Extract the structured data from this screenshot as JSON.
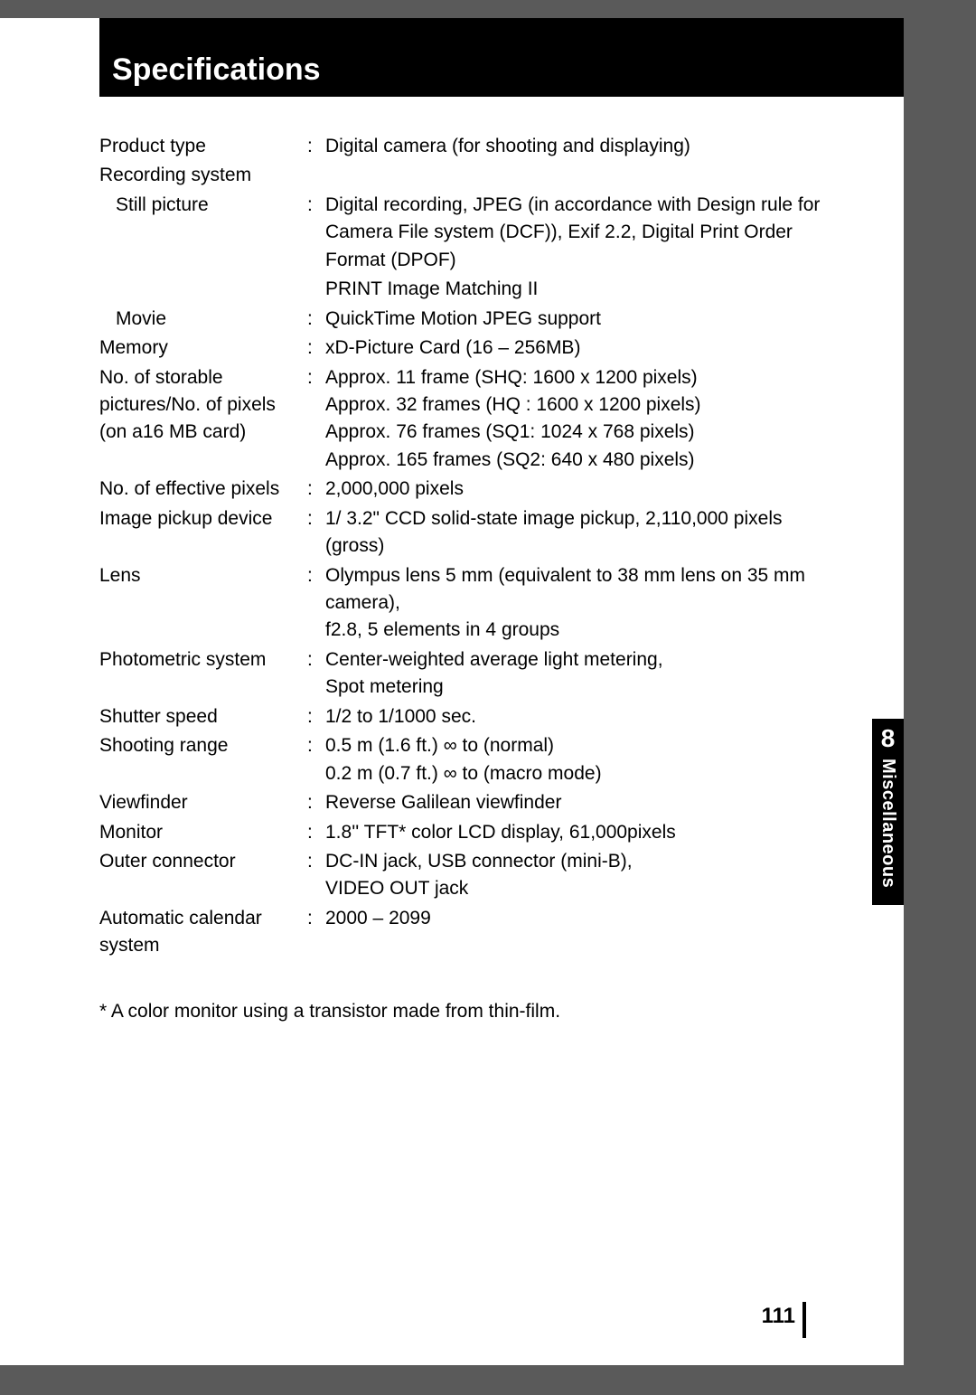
{
  "title": "Specifications",
  "specs": [
    {
      "label": "Product type",
      "colon": ":",
      "value": "Digital camera (for shooting and displaying)",
      "indent": false
    },
    {
      "label": "Recording system",
      "colon": "",
      "value": "",
      "indent": false
    },
    {
      "label": "Still picture",
      "colon": ":",
      "value": "Digital recording, JPEG (in accordance with Design rule for Camera File system (DCF)), Exif 2.2, Digital Print Order Format (DPOF)",
      "indent": true
    },
    {
      "label": "",
      "colon": "",
      "value": "PRINT Image Matching II",
      "indent": true
    },
    {
      "label": "Movie",
      "colon": ":",
      "value": "QuickTime Motion JPEG support",
      "indent": true
    },
    {
      "label": "Memory",
      "colon": ":",
      "value": "xD-Picture Card (16 – 256MB)",
      "indent": false
    },
    {
      "label": "No. of storable pictures/No. of pixels (on a16 MB card)",
      "colon": ":",
      "value": "Approx. 11 frame (SHQ: 1600 x 1200 pixels)\nApprox. 32 frames (HQ : 1600 x 1200 pixels)\nApprox. 76 frames (SQ1: 1024 x 768 pixels)\nApprox. 165 frames (SQ2: 640 x 480 pixels)",
      "indent": false
    },
    {
      "label": "No. of effective pixels",
      "colon": ":",
      "value": "2,000,000 pixels",
      "indent": false
    },
    {
      "label": "Image pickup device",
      "colon": ":",
      "value": "1/ 3.2\" CCD solid-state image pickup, 2,110,000 pixels (gross)",
      "indent": false
    },
    {
      "label": "Lens",
      "colon": ":",
      "value": "Olympus lens 5 mm  (equivalent to 38 mm lens on 35 mm camera),\nf2.8, 5 elements in 4 groups",
      "indent": false
    },
    {
      "label": "Photometric system",
      "colon": ":",
      "value": "Center-weighted average light metering,\nSpot metering",
      "indent": false
    },
    {
      "label": "Shutter speed",
      "colon": ":",
      "value": "1/2 to 1/1000 sec.",
      "indent": false
    },
    {
      "label": "Shooting range",
      "colon": ":",
      "value": "0.5 m (1.6 ft.) ∞ to (normal)\n0.2 m (0.7 ft.) ∞ to (macro mode)",
      "indent": false
    },
    {
      "label": "Viewfinder",
      "colon": ":",
      "value": "Reverse Galilean viewfinder",
      "indent": false
    },
    {
      "label": "Monitor",
      "colon": ":",
      "value": "1.8'' TFT* color LCD display, 61,000pixels",
      "indent": false
    },
    {
      "label": "Outer connector",
      "colon": ":",
      "value": "DC-IN jack, USB connector (mini-B),\nVIDEO OUT jack",
      "indent": false
    },
    {
      "label": "Automatic calendar system",
      "colon": ":",
      "value": "2000 – 2099",
      "indent": false
    }
  ],
  "footnote": "* A color monitor using a transistor made from thin-film.",
  "side_tab": {
    "number": "8",
    "text": "Miscellaneous"
  },
  "page_number": "111"
}
